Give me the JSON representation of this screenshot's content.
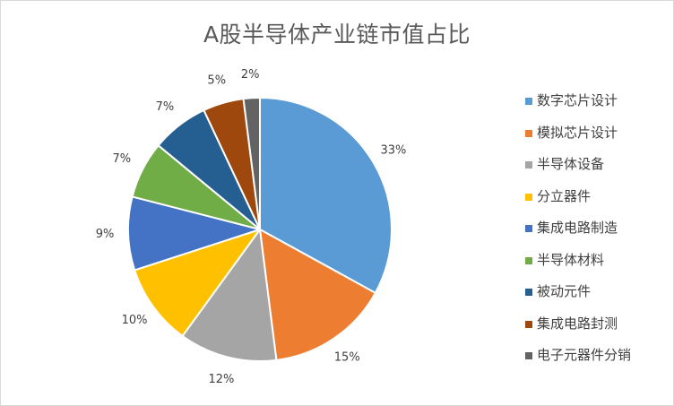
{
  "chart_data": {
    "type": "pie",
    "title": "A股半导体产业链市值占比",
    "legend_position": "right",
    "categories": [
      "数字芯片设计",
      "模拟芯片设计",
      "半导体设备",
      "分立器件",
      "集成电路制造",
      "半导体材料",
      "被动元件",
      "集成电路封测",
      "电子元器件分销"
    ],
    "values": [
      33,
      15,
      12,
      10,
      9,
      7,
      7,
      5,
      2
    ],
    "value_labels": [
      "33%",
      "15%",
      "12%",
      "10%",
      "9%",
      "7%",
      "7%",
      "5%",
      "2%"
    ],
    "colors": [
      "#5b9bd5",
      "#ed7d31",
      "#a5a5a5",
      "#ffc000",
      "#4472c4",
      "#70ad47",
      "#255e91",
      "#9e480e",
      "#636363"
    ]
  }
}
